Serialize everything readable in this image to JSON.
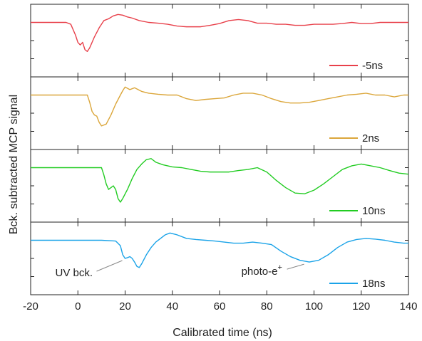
{
  "chart_data": {
    "type": "line",
    "xlabel": "Calibrated time (ns)",
    "ylabel": "Bck. subtracted MCP signal",
    "xlim": [
      -20,
      140
    ],
    "x_ticks": [
      -20,
      0,
      20,
      40,
      60,
      80,
      100,
      120,
      140
    ],
    "x_tick_labels": [
      "-20",
      "0",
      "20",
      "40",
      "60",
      "80",
      "100",
      "120",
      "140"
    ],
    "ylim": [
      -1.5,
      0.5
    ],
    "panels": [
      {
        "name": "-5ns",
        "color": "#e8404a",
        "points": [
          [
            -20,
            0.0
          ],
          [
            -10,
            0.0
          ],
          [
            -5,
            0.0
          ],
          [
            -3,
            -0.05
          ],
          [
            -1,
            -0.35
          ],
          [
            0,
            -0.55
          ],
          [
            1,
            -0.62
          ],
          [
            2,
            -0.55
          ],
          [
            3,
            -0.75
          ],
          [
            4,
            -0.8
          ],
          [
            5,
            -0.7
          ],
          [
            7,
            -0.4
          ],
          [
            9,
            -0.15
          ],
          [
            11,
            0.05
          ],
          [
            13,
            0.1
          ],
          [
            15,
            0.18
          ],
          [
            17,
            0.22
          ],
          [
            19,
            0.2
          ],
          [
            21,
            0.15
          ],
          [
            23,
            0.12
          ],
          [
            26,
            0.05
          ],
          [
            30,
            0.0
          ],
          [
            34,
            -0.02
          ],
          [
            38,
            -0.05
          ],
          [
            42,
            -0.1
          ],
          [
            46,
            -0.12
          ],
          [
            52,
            -0.12
          ],
          [
            56,
            -0.08
          ],
          [
            60,
            -0.03
          ],
          [
            64,
            0.05
          ],
          [
            68,
            0.08
          ],
          [
            72,
            0.05
          ],
          [
            76,
            -0.02
          ],
          [
            80,
            -0.02
          ],
          [
            84,
            -0.05
          ],
          [
            88,
            -0.05
          ],
          [
            92,
            -0.08
          ],
          [
            96,
            -0.08
          ],
          [
            100,
            -0.05
          ],
          [
            104,
            -0.05
          ],
          [
            108,
            -0.05
          ],
          [
            112,
            -0.03
          ],
          [
            116,
            0.0
          ],
          [
            120,
            -0.03
          ],
          [
            124,
            -0.03
          ],
          [
            128,
            0.0
          ],
          [
            132,
            0.0
          ],
          [
            136,
            0.0
          ],
          [
            140,
            0.0
          ]
        ]
      },
      {
        "name": "2ns",
        "color": "#dba63a",
        "points": [
          [
            -20,
            0.0
          ],
          [
            -10,
            0.0
          ],
          [
            0,
            0.0
          ],
          [
            4,
            0.0
          ],
          [
            5,
            -0.2
          ],
          [
            6,
            -0.45
          ],
          [
            7,
            -0.55
          ],
          [
            8,
            -0.58
          ],
          [
            9,
            -0.75
          ],
          [
            10,
            -0.85
          ],
          [
            12,
            -0.8
          ],
          [
            14,
            -0.55
          ],
          [
            16,
            -0.25
          ],
          [
            18,
            0.0
          ],
          [
            19,
            0.12
          ],
          [
            20,
            0.22
          ],
          [
            22,
            0.15
          ],
          [
            24,
            0.2
          ],
          [
            27,
            0.1
          ],
          [
            30,
            0.05
          ],
          [
            34,
            0.02
          ],
          [
            38,
            0.0
          ],
          [
            42,
            0.0
          ],
          [
            46,
            -0.1
          ],
          [
            50,
            -0.15
          ],
          [
            54,
            -0.12
          ],
          [
            58,
            -0.1
          ],
          [
            62,
            -0.08
          ],
          [
            66,
            0.0
          ],
          [
            70,
            0.05
          ],
          [
            74,
            0.05
          ],
          [
            78,
            0.0
          ],
          [
            82,
            -0.1
          ],
          [
            86,
            -0.18
          ],
          [
            90,
            -0.22
          ],
          [
            94,
            -0.22
          ],
          [
            98,
            -0.2
          ],
          [
            102,
            -0.15
          ],
          [
            106,
            -0.1
          ],
          [
            110,
            -0.05
          ],
          [
            114,
            0.0
          ],
          [
            118,
            0.02
          ],
          [
            122,
            0.05
          ],
          [
            126,
            0.0
          ],
          [
            130,
            0.0
          ],
          [
            134,
            -0.05
          ],
          [
            138,
            0.0
          ],
          [
            140,
            0.0
          ]
        ]
      },
      {
        "name": "10ns",
        "color": "#22cc22",
        "points": [
          [
            -20,
            0.0
          ],
          [
            -10,
            0.0
          ],
          [
            0,
            0.0
          ],
          [
            10,
            0.0
          ],
          [
            11,
            -0.2
          ],
          [
            12,
            -0.45
          ],
          [
            13,
            -0.6
          ],
          [
            14,
            -0.55
          ],
          [
            15,
            -0.5
          ],
          [
            16,
            -0.6
          ],
          [
            17,
            -0.85
          ],
          [
            18,
            -0.95
          ],
          [
            19,
            -0.85
          ],
          [
            21,
            -0.6
          ],
          [
            23,
            -0.3
          ],
          [
            25,
            -0.05
          ],
          [
            27,
            0.1
          ],
          [
            29,
            0.22
          ],
          [
            31,
            0.25
          ],
          [
            33,
            0.15
          ],
          [
            36,
            0.08
          ],
          [
            40,
            0.02
          ],
          [
            44,
            0.0
          ],
          [
            48,
            -0.05
          ],
          [
            52,
            -0.1
          ],
          [
            56,
            -0.12
          ],
          [
            60,
            -0.12
          ],
          [
            64,
            -0.12
          ],
          [
            68,
            -0.08
          ],
          [
            72,
            -0.05
          ],
          [
            76,
            0.0
          ],
          [
            80,
            -0.12
          ],
          [
            84,
            -0.35
          ],
          [
            88,
            -0.55
          ],
          [
            92,
            -0.7
          ],
          [
            96,
            -0.72
          ],
          [
            100,
            -0.62
          ],
          [
            104,
            -0.45
          ],
          [
            108,
            -0.25
          ],
          [
            112,
            -0.05
          ],
          [
            116,
            0.05
          ],
          [
            120,
            0.1
          ],
          [
            124,
            0.05
          ],
          [
            128,
            0.0
          ],
          [
            132,
            -0.08
          ],
          [
            136,
            -0.15
          ],
          [
            140,
            -0.18
          ]
        ]
      },
      {
        "name": "18ns",
        "color": "#1aa3e8",
        "points": [
          [
            -20,
            0.0
          ],
          [
            -10,
            0.0
          ],
          [
            0,
            0.0
          ],
          [
            10,
            0.0
          ],
          [
            16,
            -0.02
          ],
          [
            18,
            -0.15
          ],
          [
            19,
            -0.4
          ],
          [
            20,
            -0.5
          ],
          [
            21,
            -0.48
          ],
          [
            22,
            -0.45
          ],
          [
            23,
            -0.5
          ],
          [
            24,
            -0.6
          ],
          [
            25,
            -0.72
          ],
          [
            26,
            -0.75
          ],
          [
            27,
            -0.65
          ],
          [
            29,
            -0.4
          ],
          [
            31,
            -0.2
          ],
          [
            33,
            -0.05
          ],
          [
            35,
            0.05
          ],
          [
            37,
            0.15
          ],
          [
            39,
            0.2
          ],
          [
            42,
            0.15
          ],
          [
            46,
            0.05
          ],
          [
            50,
            0.02
          ],
          [
            54,
            0.0
          ],
          [
            58,
            -0.02
          ],
          [
            62,
            -0.05
          ],
          [
            66,
            -0.08
          ],
          [
            70,
            -0.08
          ],
          [
            74,
            -0.05
          ],
          [
            78,
            -0.08
          ],
          [
            82,
            -0.12
          ],
          [
            86,
            -0.3
          ],
          [
            90,
            -0.45
          ],
          [
            94,
            -0.55
          ],
          [
            98,
            -0.6
          ],
          [
            102,
            -0.55
          ],
          [
            106,
            -0.4
          ],
          [
            110,
            -0.2
          ],
          [
            114,
            -0.05
          ],
          [
            118,
            0.02
          ],
          [
            122,
            0.05
          ],
          [
            126,
            0.03
          ],
          [
            130,
            0.0
          ],
          [
            134,
            -0.05
          ],
          [
            138,
            -0.08
          ],
          [
            140,
            -0.08
          ]
        ]
      }
    ],
    "annotations": [
      {
        "text": "UV bck.",
        "x": 20,
        "y": -0.5,
        "panel": 3
      },
      {
        "text": "photo-e",
        "superscript": "+",
        "x": 97,
        "y": -0.6,
        "panel": 3
      }
    ]
  }
}
